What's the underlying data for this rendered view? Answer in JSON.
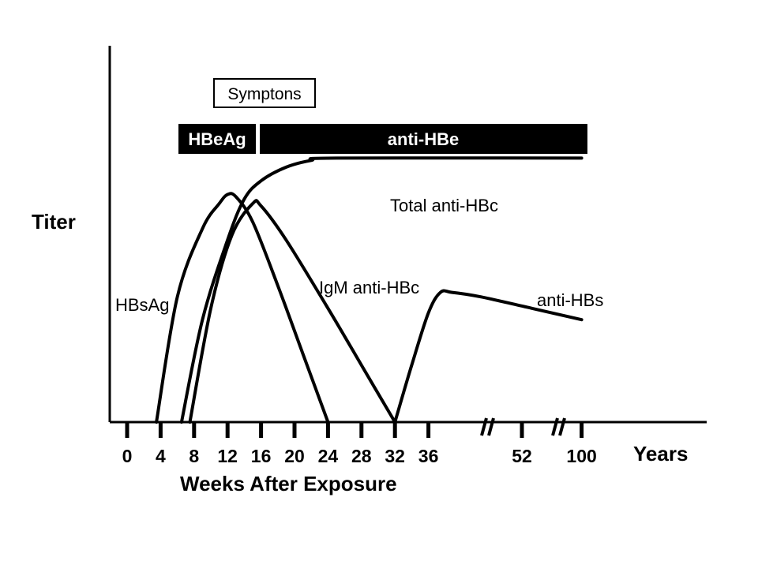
{
  "chart_data": {
    "type": "line",
    "ylabel": "Titer",
    "xlabel": "Weeks After Exposure",
    "x_unit_label": "Years",
    "x_ticks": [
      "0",
      "4",
      "8",
      "12",
      "16",
      "20",
      "24",
      "28",
      "32",
      "36",
      "52",
      "100"
    ],
    "axis_breaks_after": [
      "36",
      "52"
    ],
    "annotations": {
      "symptoms": {
        "label": "Symptons",
        "x_start": 12.5,
        "x_end": 27
      },
      "bars": [
        {
          "label": "HBeAg",
          "x_start": 6.5,
          "x_end": 18.5
        },
        {
          "label": "anti-HBe",
          "x_start": 19,
          "x_end": 70
        }
      ]
    },
    "series": [
      {
        "name": "HBsAg",
        "points": [
          [
            3.5,
            0
          ],
          [
            6,
            55
          ],
          [
            9,
            85
          ],
          [
            11,
            96
          ],
          [
            12,
            100
          ],
          [
            13,
            99
          ],
          [
            15,
            88
          ],
          [
            18,
            60
          ],
          [
            21,
            30
          ],
          [
            24,
            0
          ]
        ]
      },
      {
        "name": "Total anti-HBc",
        "points": [
          [
            6.5,
            0
          ],
          [
            9,
            45
          ],
          [
            12,
            80
          ],
          [
            14,
            98
          ],
          [
            16,
            106
          ],
          [
            19,
            112
          ],
          [
            22,
            115
          ],
          [
            25,
            116
          ],
          [
            70,
            116
          ]
        ]
      },
      {
        "name": "IgM anti-HBc",
        "points": [
          [
            7.5,
            0
          ],
          [
            10,
            50
          ],
          [
            12.5,
            82
          ],
          [
            15,
            96
          ],
          [
            16,
            95
          ],
          [
            19,
            80
          ],
          [
            24,
            50
          ],
          [
            28,
            25
          ],
          [
            32,
            0
          ]
        ]
      },
      {
        "name": "anti-HBs",
        "points": [
          [
            32,
            0
          ],
          [
            34,
            25
          ],
          [
            36,
            48
          ],
          [
            38,
            57
          ],
          [
            40,
            57
          ],
          [
            45,
            55
          ],
          [
            55,
            50
          ],
          [
            70,
            45
          ]
        ]
      }
    ],
    "y_range": [
      0,
      130
    ],
    "grid": false,
    "legend": "none"
  }
}
